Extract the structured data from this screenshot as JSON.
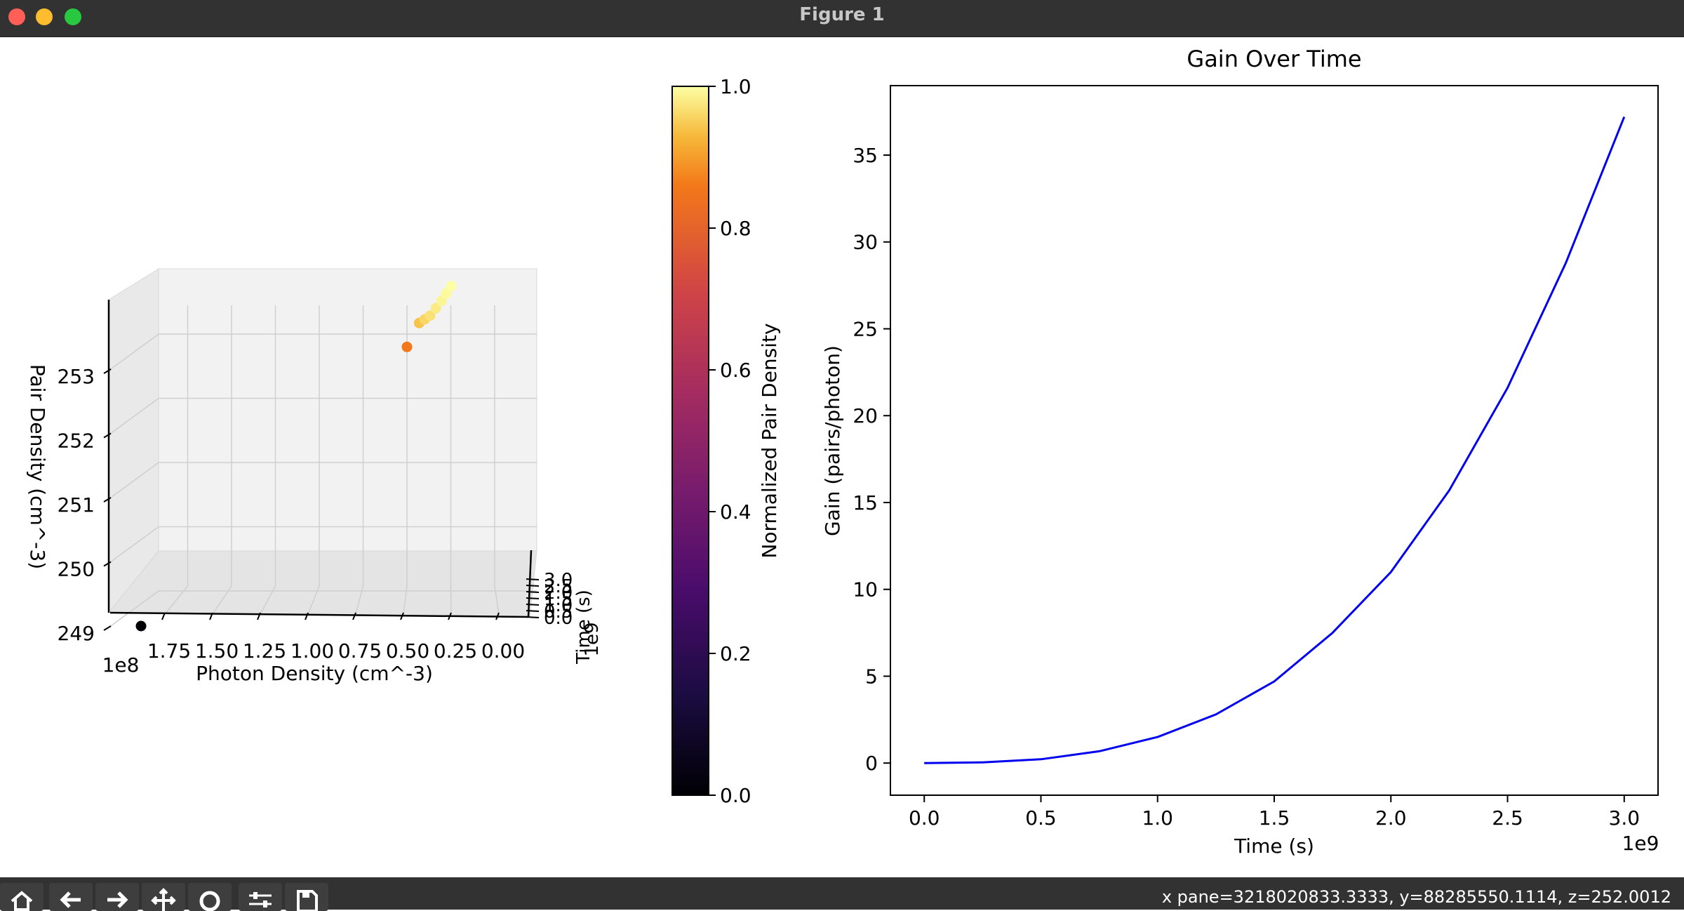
{
  "window": {
    "title": "Figure 1"
  },
  "toolbar": {
    "buttons": [
      {
        "name": "home-button",
        "icon": "home-icon"
      },
      {
        "name": "back-button",
        "icon": "arrow-left-icon"
      },
      {
        "name": "forward-button",
        "icon": "arrow-right-icon"
      },
      {
        "name": "pan-button",
        "icon": "move-icon"
      },
      {
        "name": "zoom-button",
        "icon": "magnifier-icon"
      },
      {
        "name": "configure-subplots-button",
        "icon": "sliders-icon"
      },
      {
        "name": "save-button",
        "icon": "floppy-disk-icon"
      }
    ],
    "coords": "x pane=3218020833.3333, y=88285550.1114, z=252.0012"
  },
  "chart_data": [
    {
      "type": "scatter",
      "subtype": "3d-scatter",
      "xlabel": "Photon Density (cm^-3)",
      "x_offset_label": "1e8",
      "x_ticks": [
        "1.75",
        "1.50",
        "1.25",
        "1.00",
        "0.75",
        "0.50",
        "0.25",
        "0.00"
      ],
      "ylabel": "Pair Density (cm^-3)",
      "y_ticks": [
        "249",
        "250",
        "251",
        "252",
        "253"
      ],
      "zlabel": "Time (s)",
      "z_offset_label": "1e9",
      "z_ticks": [
        "0.0",
        "0.5",
        "1.0",
        "1.5",
        "2.0",
        "2.5",
        "3.0"
      ],
      "points": [
        {
          "photon": 1.8,
          "pair": 249.0,
          "norm": 0.0
        },
        {
          "photon": 0.5,
          "pair": 252.8,
          "norm": 0.86
        },
        {
          "photon": 0.32,
          "pair": 253.12,
          "norm": 0.94
        },
        {
          "photon": 0.3,
          "pair": 253.16,
          "norm": 0.96
        },
        {
          "photon": 0.28,
          "pair": 253.2,
          "norm": 0.97
        },
        {
          "photon": 0.27,
          "pair": 253.28,
          "norm": 0.98
        },
        {
          "photon": 0.26,
          "pair": 253.36,
          "norm": 0.99
        },
        {
          "photon": 0.255,
          "pair": 253.44,
          "norm": 0.995
        },
        {
          "photon": 0.25,
          "pair": 253.52,
          "norm": 1.0
        }
      ],
      "colorbar": {
        "label": "Normalized Pair Density",
        "ticks": [
          "0.0",
          "0.2",
          "0.4",
          "0.6",
          "0.8",
          "1.0"
        ],
        "colormap": "inferno"
      }
    },
    {
      "type": "line",
      "title": "Gain Over Time",
      "xlabel": "Time (s)",
      "x_offset_label": "1e9",
      "ylabel": "Gain (pairs/photon)",
      "xlim": [
        -0.145,
        3.145
      ],
      "ylim": [
        -1.85,
        39
      ],
      "x_ticks": [
        "0.0",
        "0.5",
        "1.0",
        "1.5",
        "2.0",
        "2.5",
        "3.0"
      ],
      "y_ticks": [
        "0",
        "5",
        "10",
        "15",
        "20",
        "25",
        "30",
        "35"
      ],
      "series": [
        {
          "color": "#0000ee",
          "x": [
            0,
            0.25,
            0.5,
            0.75,
            1.0,
            1.25,
            1.5,
            1.75,
            2.0,
            2.25,
            2.5,
            2.75,
            3.0
          ],
          "y": [
            0,
            0.04,
            0.22,
            0.68,
            1.5,
            2.8,
            4.7,
            7.5,
            11.0,
            15.7,
            21.6,
            28.8,
            37.2
          ]
        }
      ]
    }
  ]
}
